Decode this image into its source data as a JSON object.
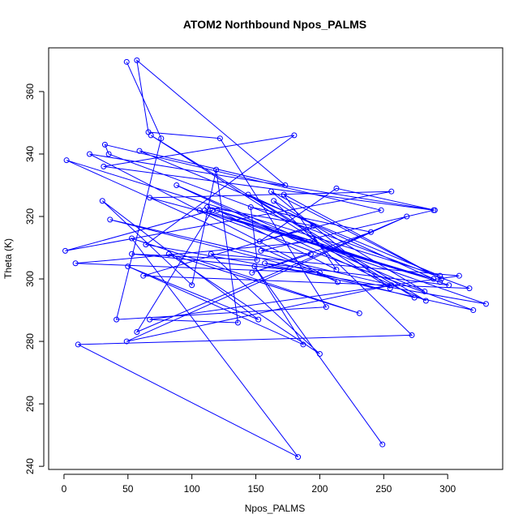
{
  "chart_data": {
    "type": "line",
    "title": "ATOM2 Northbound Npos_PALMS",
    "xlabel": "Npos_PALMS",
    "ylabel": "Theta (K)",
    "xlim": [
      -12,
      343
    ],
    "ylim": [
      239,
      374
    ],
    "xticks": [
      0,
      50,
      100,
      150,
      200,
      250,
      300
    ],
    "yticks": [
      240,
      260,
      280,
      300,
      320,
      340,
      360
    ],
    "series_color": "#0000ff",
    "grid": false,
    "series": [
      {
        "x": [
          49,
          76,
          41,
          205,
          122,
          66,
          57,
          173,
          59,
          294,
          2,
          214,
          20,
          290,
          213,
          153,
          248,
          32,
          35,
          317,
          62,
          195,
          112,
          330,
          64,
          180,
          31,
          289,
          154,
          193,
          147,
          240,
          146,
          151,
          53,
          200,
          9,
          196,
          67,
          256,
          1,
          116,
          57,
          268,
          49,
          256,
          36,
          274,
          68,
          255,
          162,
          295,
          172,
          213,
          120,
          301,
          157,
          320,
          106,
          294,
          110,
          289,
          144,
          283,
          88,
          282,
          164,
          272,
          11,
          183,
          53,
          231,
          82,
          200,
          115,
          309,
          67,
          136,
          119,
          100,
          30,
          152,
          50,
          187,
          149,
          249
        ],
        "y": [
          369.5,
          345,
          287,
          291,
          345,
          347,
          370,
          330,
          341,
          301,
          338,
          299,
          340,
          322,
          329,
          312,
          322,
          343,
          340,
          297,
          301,
          317,
          323,
          292,
          311,
          346,
          336,
          322,
          309,
          308,
          302,
          315,
          323,
          306,
          308,
          302,
          305,
          312,
          326,
          328,
          309,
          322,
          283,
          320,
          280,
          298,
          319,
          294,
          346,
          297,
          328,
          300,
          327,
          303,
          322,
          298,
          305,
          290,
          322,
          299,
          322,
          300,
          327,
          293,
          330,
          296,
          325,
          282,
          279,
          243,
          313,
          289,
          308,
          276,
          308,
          301,
          287,
          286,
          335,
          298,
          325,
          287,
          304,
          279,
          304,
          247
        ]
      }
    ]
  }
}
